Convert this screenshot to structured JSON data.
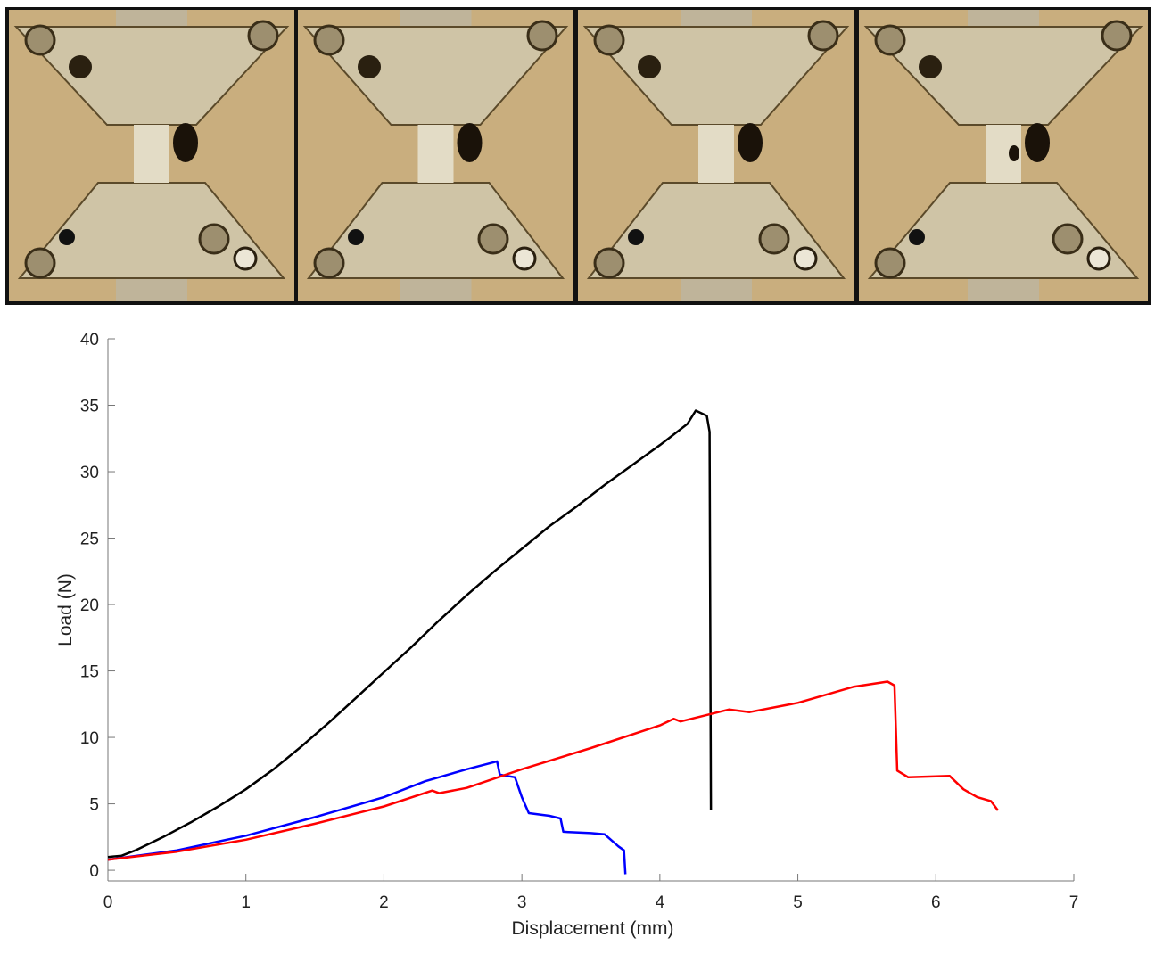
{
  "chart_data": {
    "type": "line",
    "xlabel": "Displacement (mm)",
    "ylabel": "Load (N)",
    "xlim": [
      0,
      7
    ],
    "ylim": [
      -0.8,
      40
    ],
    "xticks": [
      0,
      1,
      2,
      3,
      4,
      5,
      6,
      7
    ],
    "yticks": [
      0,
      5,
      10,
      15,
      20,
      25,
      30,
      35,
      40
    ],
    "series": [
      {
        "color": "#000000",
        "x": [
          0,
          0.1,
          0.2,
          0.4,
          0.6,
          0.8,
          1,
          1.2,
          1.4,
          1.6,
          1.8,
          2,
          2.2,
          2.4,
          2.6,
          2.8,
          3,
          3.2,
          3.4,
          3.6,
          3.8,
          4,
          4.2,
          4.26,
          4.34,
          4.36,
          4.37
        ],
        "values": [
          1,
          1.1,
          1.5,
          2.5,
          3.6,
          4.8,
          6.1,
          7.6,
          9.3,
          11.1,
          13,
          14.9,
          16.8,
          18.8,
          20.7,
          22.5,
          24.2,
          25.9,
          27.4,
          29,
          30.5,
          32,
          33.6,
          34.6,
          34.2,
          33,
          4.5
        ]
      },
      {
        "color": "#0000ff",
        "x": [
          0,
          0.5,
          1,
          1.5,
          2,
          2.3,
          2.6,
          2.82,
          2.84,
          2.95,
          3.0,
          3.05,
          3.2,
          3.28,
          3.3,
          3.5,
          3.6,
          3.7,
          3.74,
          3.75
        ],
        "values": [
          0.8,
          1.5,
          2.6,
          4,
          5.5,
          6.7,
          7.6,
          8.2,
          7.2,
          7,
          5.5,
          4.3,
          4.1,
          3.9,
          2.9,
          2.8,
          2.7,
          1.8,
          1.5,
          -0.3
        ]
      },
      {
        "color": "#ff0000",
        "x": [
          0,
          0.5,
          1,
          1.5,
          2,
          2.35,
          2.4,
          2.6,
          3,
          3.5,
          4,
          4.1,
          4.15,
          4.5,
          4.65,
          5,
          5.4,
          5.65,
          5.7,
          5.72,
          5.8,
          6.1,
          6.2,
          6.3,
          6.4,
          6.45
        ],
        "values": [
          0.8,
          1.4,
          2.3,
          3.5,
          4.8,
          6,
          5.8,
          6.2,
          7.6,
          9.2,
          10.9,
          11.4,
          11.2,
          12.1,
          11.9,
          12.6,
          13.8,
          14.2,
          13.9,
          7.5,
          7,
          7.1,
          6.1,
          5.5,
          5.2,
          4.5
        ]
      }
    ]
  }
}
